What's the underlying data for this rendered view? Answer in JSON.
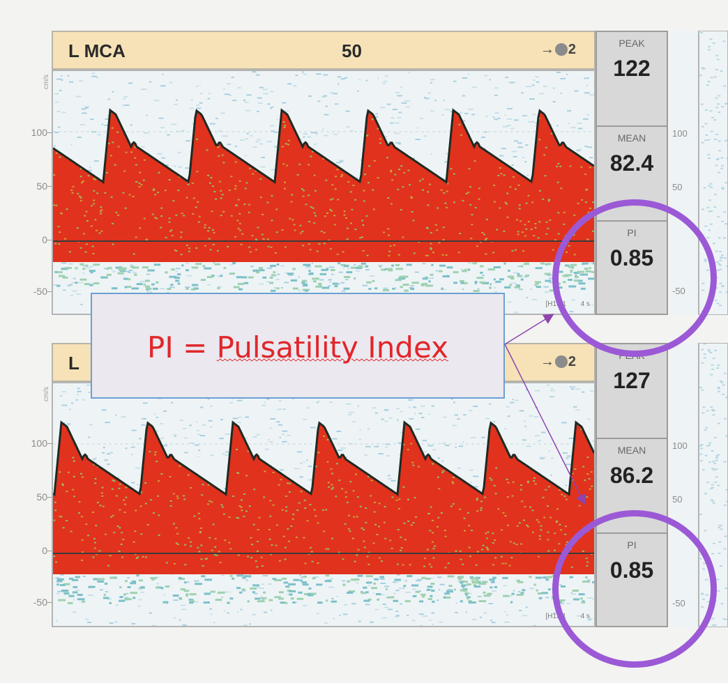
{
  "panels": [
    {
      "vessel": "L MCA",
      "depth": "50",
      "probe_prefix": "→",
      "probe_suffix": "2",
      "peak_label": "PEAK",
      "peak": "122",
      "mean_label": "MEAN",
      "mean": "82.4",
      "pi_label": "PI",
      "pi": "0.85",
      "timestamp": "[H13:1",
      "scale": "4 s"
    },
    {
      "vessel": "L",
      "probe_prefix": "→",
      "probe_suffix": "2",
      "peak_label": "PEAK",
      "peak": "127",
      "mean_label": "MEAN",
      "mean": "86.2",
      "pi_label": "PI",
      "pi": "0.85",
      "timestamp": "[H13:1",
      "scale": "4 s"
    }
  ],
  "y_axis": {
    "ticks": [
      "100",
      "50",
      "0",
      "-50"
    ],
    "unit": "cm/s"
  },
  "callout": {
    "prefix": "PI = ",
    "term": "Pulsatility Index"
  },
  "colors": {
    "flow": "#e1321e",
    "envelope": "#1e2a22",
    "circle": "#9b59d6",
    "callout_text": "#e1262a",
    "callout_border": "#6b9fd2"
  }
}
